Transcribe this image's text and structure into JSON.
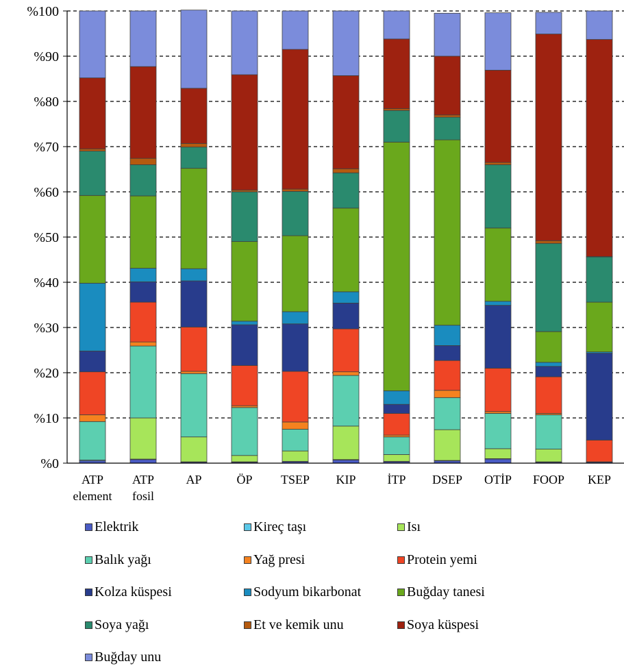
{
  "chart_data": {
    "type": "bar",
    "stacked": true,
    "categories": [
      "ATP\nelement",
      "ATP\nfosil",
      "AP",
      "ÖP",
      "TSEP",
      "KIP",
      "İTP",
      "DSEP",
      "OTİP",
      "FOOP",
      "KEP"
    ],
    "ylim": [
      0,
      100
    ],
    "ytick_labels": [
      "%0",
      "%10",
      "%20",
      "%30",
      "%40",
      "%50",
      "%60",
      "%70",
      "%80",
      "%90",
      "%100"
    ],
    "grid": "horizontal dashed",
    "legend_position": "bottom",
    "series": [
      {
        "name": "Elektrik",
        "color": "#4a5bc4",
        "values": [
          0.5,
          0.8,
          0.2,
          0.2,
          0.3,
          0.7,
          0.3,
          0.5,
          0.9,
          0.2,
          0.2
        ]
      },
      {
        "name": "Kireç taşı",
        "color": "#5bc8e8",
        "values": [
          0.2,
          0.1,
          0.1,
          0.1,
          0.1,
          0.1,
          0.1,
          0.1,
          0.1,
          0.1,
          0.1
        ]
      },
      {
        "name": "Isı",
        "color": "#a7e55a",
        "values": [
          0.0,
          9.1,
          5.5,
          1.4,
          2.3,
          7.4,
          1.5,
          6.8,
          2.2,
          2.8,
          0.0
        ]
      },
      {
        "name": "Balık yağı",
        "color": "#5ccfb0",
        "values": [
          8.5,
          15.9,
          14.0,
          10.6,
          4.8,
          11.2,
          3.9,
          7.1,
          7.8,
          7.6,
          0.0
        ]
      },
      {
        "name": "Yağ presi",
        "color": "#f5821f",
        "values": [
          1.5,
          0.9,
          0.5,
          0.4,
          1.6,
          0.8,
          0.4,
          1.6,
          0.4,
          0.3,
          0.0
        ]
      },
      {
        "name": "Protein yemi",
        "color": "#ef4525",
        "values": [
          9.5,
          8.8,
          9.8,
          8.9,
          11.2,
          9.5,
          4.8,
          6.6,
          9.6,
          8.1,
          4.8
        ]
      },
      {
        "name": "Kolza küspesi",
        "color": "#283c8c",
        "values": [
          4.6,
          4.5,
          10.2,
          9.0,
          10.5,
          5.7,
          2.0,
          3.3,
          13.9,
          2.3,
          19.2
        ]
      },
      {
        "name": "Sodyum bikarbonat",
        "color": "#1a8cbf",
        "values": [
          15.0,
          3.0,
          2.7,
          0.8,
          2.7,
          2.5,
          3.0,
          4.5,
          0.9,
          0.9,
          0.3
        ]
      },
      {
        "name": "Buğday tanesi",
        "color": "#6aa81c",
        "values": [
          19.4,
          16.0,
          22.2,
          17.6,
          16.8,
          18.5,
          55.0,
          41.0,
          16.2,
          6.8,
          11.0
        ]
      },
      {
        "name": "Soya yağı",
        "color": "#2a8a6e",
        "values": [
          9.8,
          6.9,
          4.7,
          11.0,
          9.8,
          7.8,
          7.0,
          5.0,
          14.0,
          19.5,
          10.0
        ]
      },
      {
        "name": "Et ve kemik unu",
        "color": "#b55a0f",
        "values": [
          0.5,
          1.4,
          0.8,
          0.4,
          0.5,
          0.9,
          0.4,
          0.5,
          0.5,
          0.6,
          0.1
        ]
      },
      {
        "name": "Soya küspesi",
        "color": "#9e2210",
        "values": [
          15.7,
          20.3,
          12.2,
          25.5,
          30.9,
          20.6,
          15.4,
          13.0,
          20.4,
          45.7,
          48.0
        ]
      },
      {
        "name": "Buğday unu",
        "color": "#7b8cdb",
        "values": [
          14.8,
          12.3,
          17.3,
          14.1,
          8.5,
          14.3,
          6.2,
          9.5,
          12.7,
          4.8,
          6.3
        ]
      }
    ]
  },
  "legend": {
    "items": [
      "Elektrik",
      "Kireç taşı",
      "Isı",
      "Balık yağı",
      "Yağ presi",
      "Protein yemi",
      "Kolza küspesi",
      "Sodyum bikarbonat",
      "Buğday tanesi",
      "Soya yağı",
      "Et ve kemik unu",
      "Soya küspesi",
      "Buğday unu"
    ]
  }
}
